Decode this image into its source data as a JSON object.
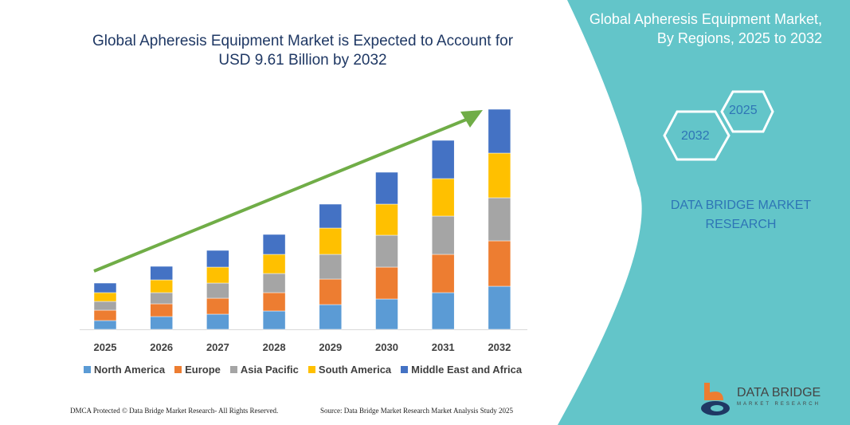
{
  "title": "Global Apheresis Equipment Market is Expected to Account for USD 9.61 Billion by 2032",
  "panel": {
    "title_line1": "Global Apheresis Equipment Market,",
    "title_line2": "By Regions, 2025 to 2032",
    "hex_a": "2025",
    "hex_b": "2032",
    "brand_line1": "DATA BRIDGE MARKET",
    "brand_line2": "RESEARCH",
    "color": "#63c5c9"
  },
  "logo": {
    "name": "DATA BRIDGE",
    "sub": "MARKET RESEARCH"
  },
  "footer": {
    "left": "DMCA Protected © Data Bridge Market Research- All Rights Reserved.",
    "right": "Source: Data Bridge Market Research Market Analysis Study 2025"
  },
  "chart_data": {
    "type": "bar",
    "stacked": true,
    "title": "Global Apheresis Equipment Market is Expected to Account for USD 9.61 Billion by 2032",
    "categories": [
      "2025",
      "2026",
      "2027",
      "2028",
      "2029",
      "2030",
      "2031",
      "2032"
    ],
    "series": [
      {
        "name": "North America",
        "color": "#5b9bd5",
        "values": [
          11,
          16,
          19,
          23,
          31,
          38,
          46,
          54
        ]
      },
      {
        "name": "Europe",
        "color": "#ed7d31",
        "values": [
          13,
          16,
          20,
          23,
          32,
          40,
          48,
          57
        ]
      },
      {
        "name": "Asia Pacific",
        "color": "#a5a5a5",
        "values": [
          11,
          14,
          19,
          24,
          31,
          40,
          48,
          54
        ]
      },
      {
        "name": "South America",
        "color": "#ffc000",
        "values": [
          11,
          16,
          20,
          24,
          33,
          39,
          47,
          56
        ]
      },
      {
        "name": "Middle East and Africa",
        "color": "#4472c4",
        "values": [
          12,
          17,
          21,
          25,
          30,
          40,
          48,
          55
        ]
      }
    ],
    "trend_arrow_color": "#70ad47",
    "legend_position": "bottom",
    "grid": false,
    "yaxis_visible": false
  }
}
